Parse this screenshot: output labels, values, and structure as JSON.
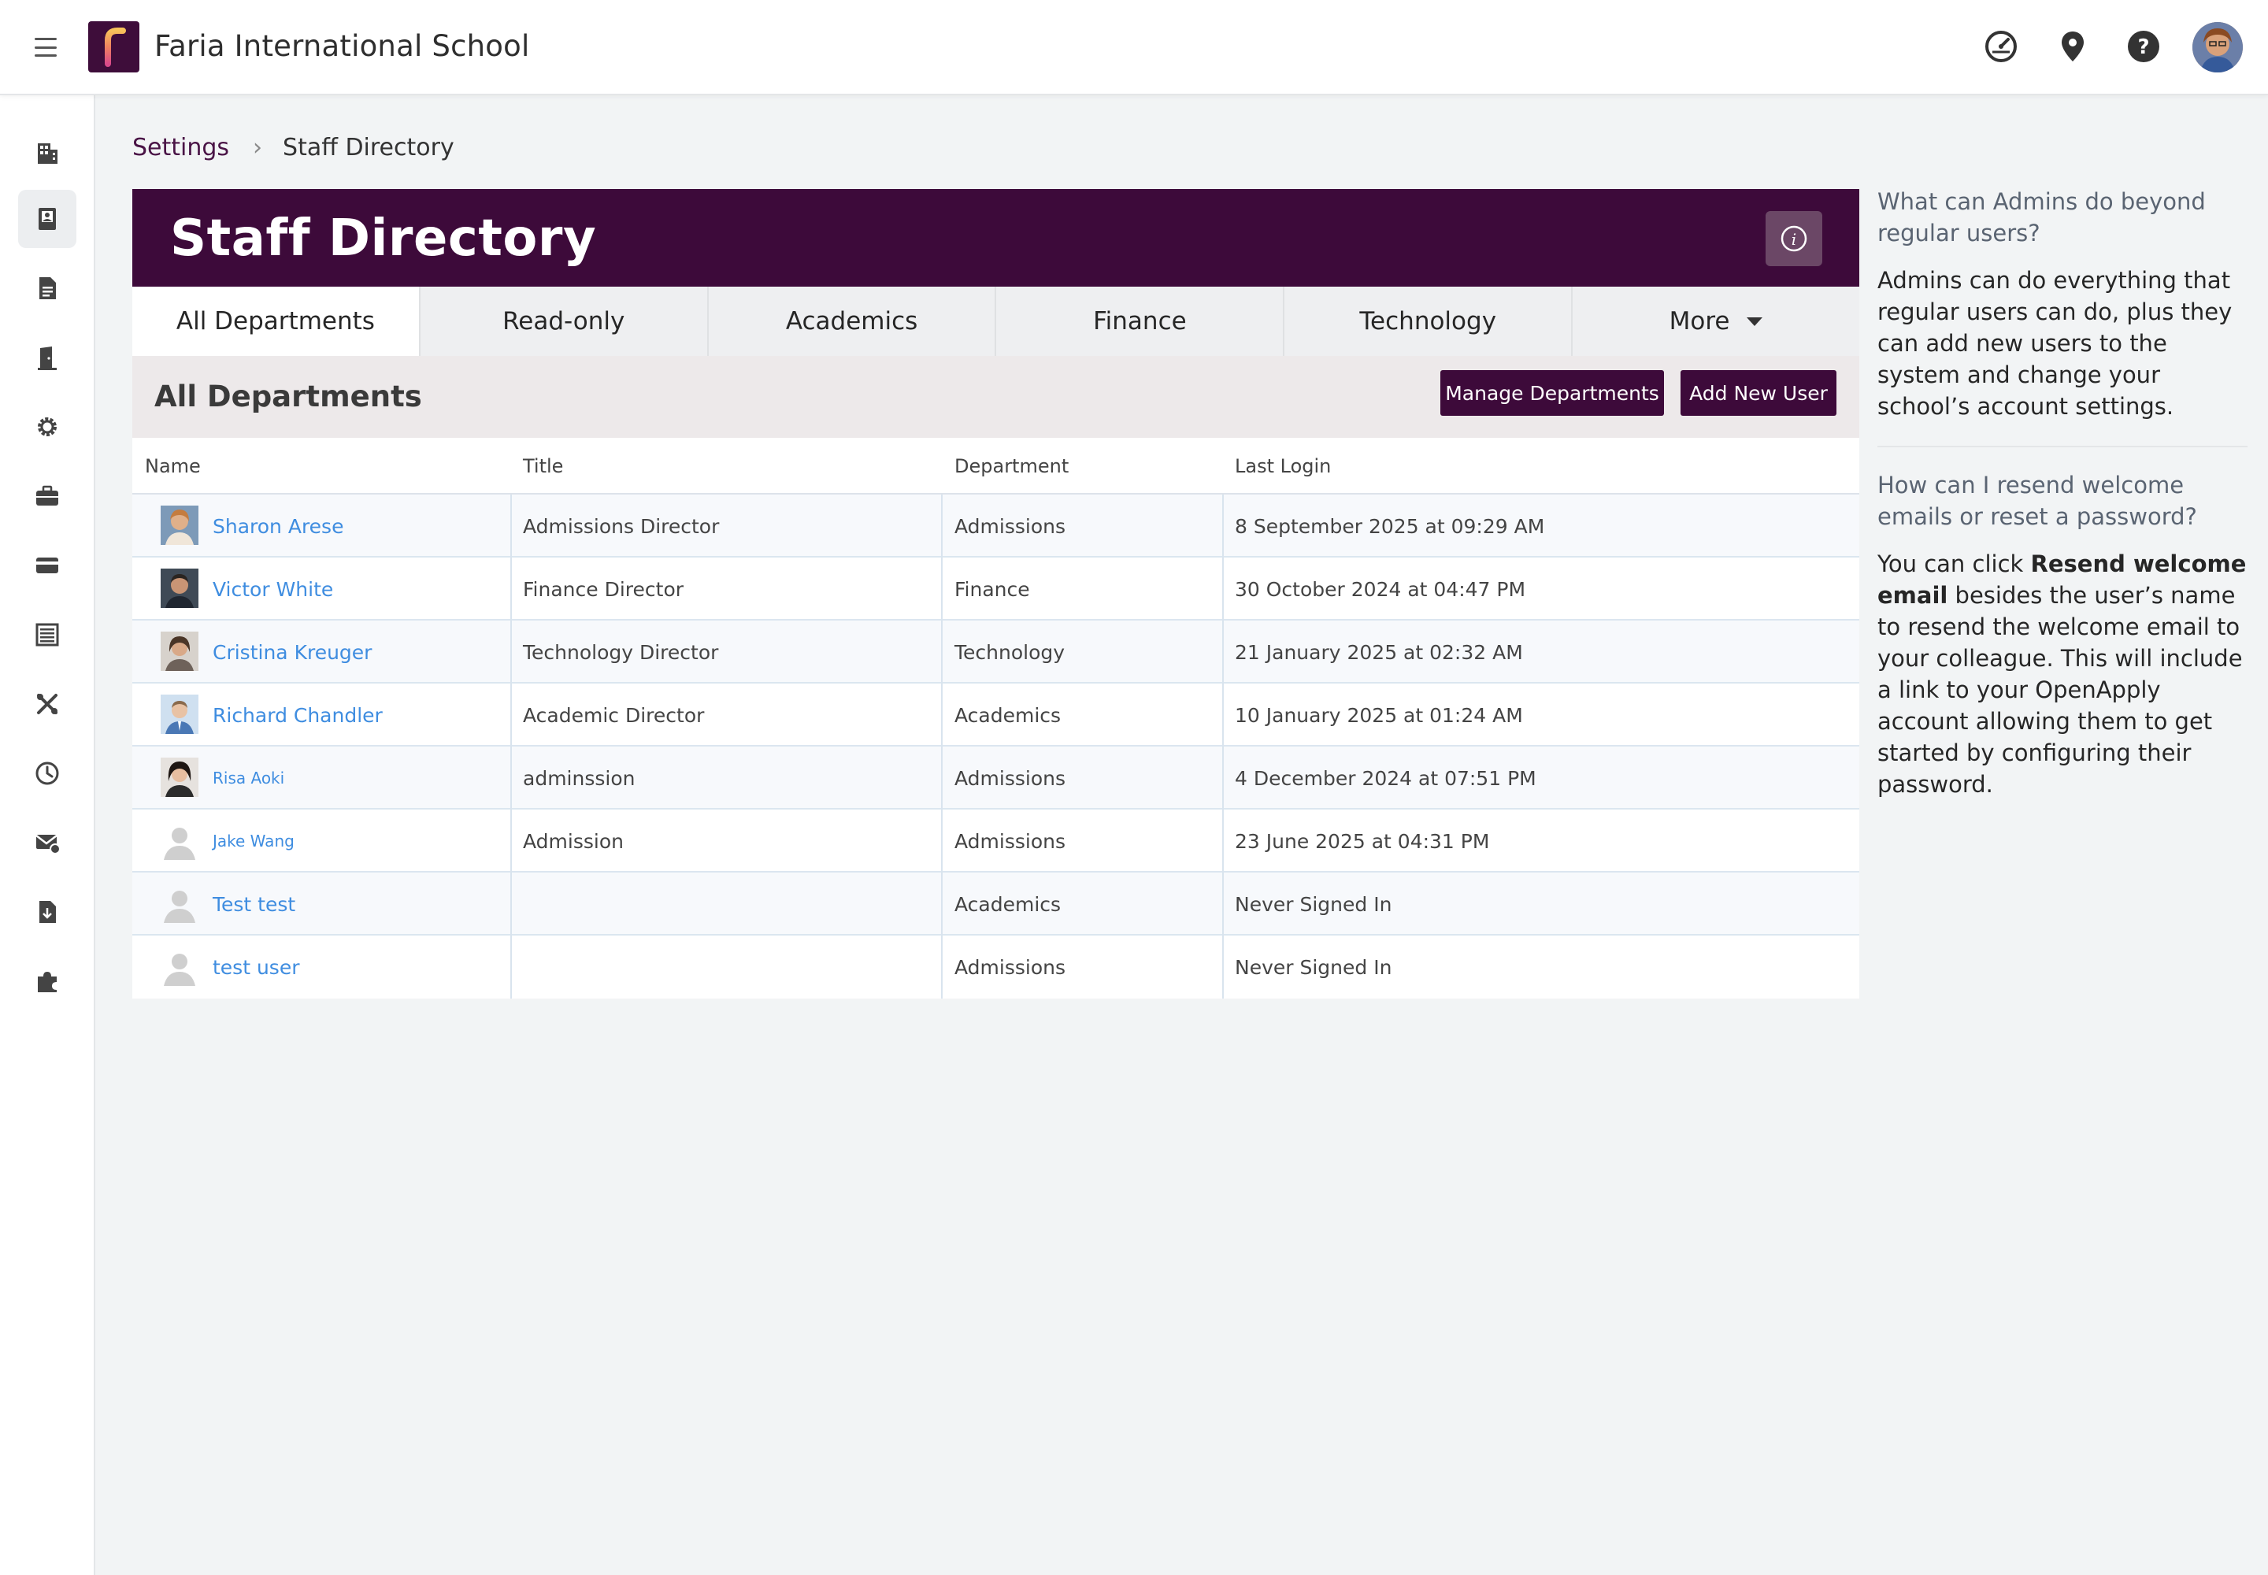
{
  "app": {
    "school_name": "Faria International School",
    "logo_letter": "f"
  },
  "topbar": {
    "icons": [
      "dashboard-gauge-icon",
      "location-pin-icon",
      "help-icon",
      "user-avatar"
    ]
  },
  "rail": {
    "items": [
      "building-icon",
      "address-book-icon",
      "document-icon",
      "door-icon",
      "gear-icon",
      "briefcase-icon",
      "credit-card-icon",
      "list-icon",
      "tools-icon",
      "clock-icon",
      "mail-icon",
      "download-file-icon",
      "puzzle-icon"
    ],
    "active_index": 1
  },
  "breadcrumb": {
    "parent": "Settings",
    "separator": "›",
    "current": "Staff Directory"
  },
  "card": {
    "title": "Staff Directory",
    "info_label": "i"
  },
  "tabs": [
    {
      "label": "All Departments",
      "active": true
    },
    {
      "label": "Read-only",
      "active": false
    },
    {
      "label": "Academics",
      "active": false
    },
    {
      "label": "Finance",
      "active": false
    },
    {
      "label": "Technology",
      "active": false
    },
    {
      "label": "More",
      "active": false
    }
  ],
  "section": {
    "title": "All Departments",
    "manage_label": "Manage Departments",
    "add_label": "Add New User"
  },
  "table": {
    "headers": [
      "Name",
      "Title",
      "Department",
      "Last Login"
    ],
    "rows": [
      {
        "name": "Sharon Arese",
        "title": "Admissions Director",
        "department": "Admissions",
        "last_login": "8 September 2025 at 09:29 AM",
        "avatar": "photo-1"
      },
      {
        "name": "Victor White",
        "title": "Finance Director",
        "department": "Finance",
        "last_login": "30 October 2024 at 04:47 PM",
        "avatar": "photo-2"
      },
      {
        "name": "Cristina Kreuger",
        "title": "Technology Director",
        "department": "Technology",
        "last_login": "21 January 2025 at 02:32 AM",
        "avatar": "photo-3"
      },
      {
        "name": "Richard Chandler",
        "title": "Academic Director",
        "department": "Academics",
        "last_login": "10 January 2025 at 01:24 AM",
        "avatar": "photo-4"
      },
      {
        "name": "Risa Aoki",
        "title": "adminssion",
        "department": "Admissions",
        "last_login": "4 December 2024 at 07:51 PM",
        "avatar": "photo-5"
      },
      {
        "name": "Jake Wang",
        "title": "Admission",
        "department": "Admissions",
        "last_login": "23 June 2025 at 04:31 PM",
        "avatar": "placeholder"
      },
      {
        "name": "Test test",
        "title": "",
        "department": "Academics",
        "last_login": "Never Signed In",
        "avatar": "placeholder"
      },
      {
        "name": "test user",
        "title": "",
        "department": "Admissions",
        "last_login": "Never Signed In",
        "avatar": "placeholder"
      }
    ]
  },
  "help": {
    "q1": "What can Admins do beyond regular users?",
    "a1": "Admins can do everything that regular users can do, plus they can add new users to the system and change your school’s account settings.",
    "q2": "How can I resend welcome emails or reset a password?",
    "a2_pre": "You can click ",
    "a2_bold": "Resend welcome email",
    "a2_post": " besides the user’s name to resend the welcome email to your colleague. This will include a link to your OpenApply account allowing them to get started by configuring their password."
  },
  "colors": {
    "brand": "#3d0a3a",
    "link": "#3f8de0",
    "background": "#f2f4f5"
  }
}
